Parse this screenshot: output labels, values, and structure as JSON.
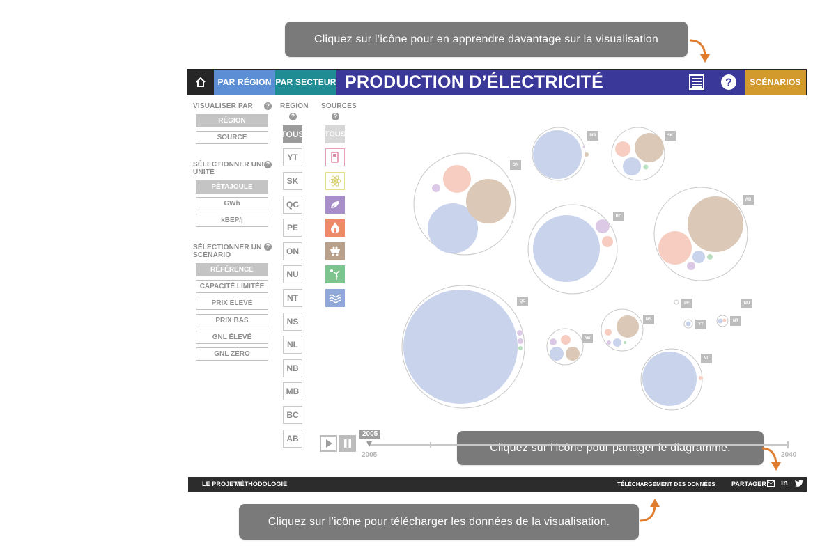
{
  "tooltips": {
    "top": "Cliquez sur l’icône pour en apprendre davantage sur la visualisation",
    "share": "Cliquez sur l’icône pour partager le diagramme.",
    "download": "Cliquez sur l’icône pour télécharger les données de la visualisation."
  },
  "header": {
    "home_icon": "home-icon",
    "par_region": "PAR RÉGION",
    "par_secteur": "PAR SECTEUR",
    "title": "PRODUCTION D’ÉLECTRICITÉ",
    "info_icon": "document-list-icon",
    "help_icon": "question-circle-icon",
    "scenarios": "SCÉNARIOS"
  },
  "left_panel": {
    "visualiser_label": "VISUALISER PAR",
    "visualiser_options": [
      "RÉGION",
      "SOURCE"
    ],
    "unit_label_1": "SÉLECTIONNER UNE",
    "unit_label_2": "UNITÉ",
    "unit_options": [
      "PÉTAJOULE",
      "GWh",
      "kBEP/j"
    ],
    "scenario_label_1": "SÉLECTIONNER UN",
    "scenario_label_2": "SCÉNARIO",
    "scenario_options": [
      "RÉFÉRENCE",
      "CAPACITÉ LIMITÉE",
      "PRIX ÉLEVÉ",
      "PRIX BAS",
      "GNL ÉLEVÉ",
      "GNL ZÉRO"
    ]
  },
  "region_column": {
    "header": "RÉGION",
    "items": [
      "TOUS",
      "YT",
      "SK",
      "QC",
      "PE",
      "ON",
      "NU",
      "NT",
      "NS",
      "NL",
      "NB",
      "MB",
      "BC",
      "AB"
    ]
  },
  "source_column": {
    "header": "SOURCES",
    "all": "TOUS",
    "icons": [
      "oil-pump-icon",
      "nuclear-atom-icon",
      "biomass-leaf-icon",
      "gas-flame-icon",
      "coal-cart-icon",
      "wind-solar-icon",
      "hydro-waves-icon"
    ]
  },
  "colors": {
    "hydro": "#c9d3ec",
    "gas": "#f6cdc0",
    "coal": "#dbc8b6",
    "biomass": "#dcc9e6",
    "wind": "#b9dfc0",
    "header_bg": "#3a3899",
    "par_region_bg": "#5b8ed5",
    "par_secteur_bg": "#1e8c92",
    "scenarios_bg": "#d29a2c"
  },
  "bubbles": [
    {
      "label": "ON"
    },
    {
      "label": "MB"
    },
    {
      "label": "SK"
    },
    {
      "label": "BC"
    },
    {
      "label": "AB"
    },
    {
      "label": "QC"
    },
    {
      "label": "NB"
    },
    {
      "label": "NS"
    },
    {
      "label": "PE"
    },
    {
      "label": "YT"
    },
    {
      "label": "NU"
    },
    {
      "label": "NT"
    },
    {
      "label": "NL"
    }
  ],
  "timeline": {
    "current_year": "2005",
    "start_year": "2005",
    "end_year": "2040"
  },
  "footer": {
    "le_projet": "LE PROJET",
    "methodologie": "MÉTHODOLOGIE",
    "telechargement": "Téléchargement des données",
    "partager": "PARTAGER",
    "email_icon": "email-icon",
    "linkedin": "in",
    "twitter_icon": "twitter-icon"
  }
}
